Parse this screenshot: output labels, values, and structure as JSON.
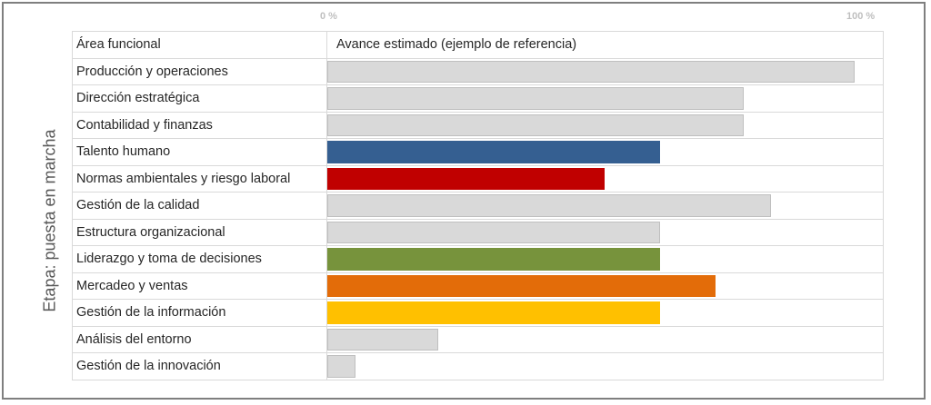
{
  "chart_data": {
    "type": "bar",
    "orientation": "horizontal",
    "title": "",
    "scale_labels": {
      "min": "0 %",
      "max": "100 %"
    },
    "xlim": [
      0,
      100
    ],
    "ylabel": "Etapa: puesta en marcha",
    "header": {
      "category_column": "Área funcional",
      "value_column": "Avance estimado (ejemplo de referencia)"
    },
    "categories": [
      "Producción y operaciones",
      "Dirección estratégica",
      "Contabilidad y finanzas",
      "Talento humano",
      "Normas ambientales y riesgo laboral",
      "Gestión de la calidad",
      "Estructura organizacional",
      "Liderazgo y toma de decisiones",
      "Mercadeo y ventas",
      "Gestión de la información",
      "Análisis del entorno",
      "Gestión de la innovación"
    ],
    "values": [
      95,
      75,
      75,
      60,
      50,
      80,
      60,
      60,
      70,
      60,
      20,
      5
    ],
    "colors": [
      "#d9d9d9",
      "#d9d9d9",
      "#d9d9d9",
      "#355f91",
      "#c00000",
      "#d9d9d9",
      "#d9d9d9",
      "#77933c",
      "#e36c09",
      "#ffc000",
      "#d9d9d9",
      "#d9d9d9"
    ],
    "grid": true,
    "legend": "none"
  }
}
